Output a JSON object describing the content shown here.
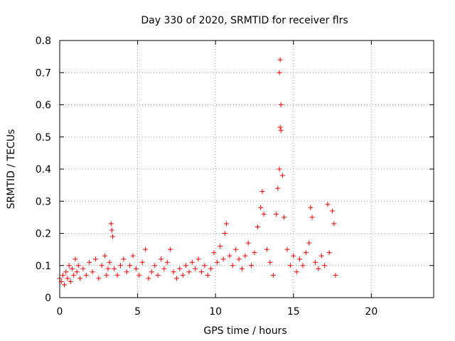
{
  "chart_data": {
    "type": "scatter",
    "title": "Day 330 of 2020, SRMTID for receiver flrs",
    "xlabel": "GPS time / hours",
    "ylabel": "SRMTID / TECUs",
    "xlim": [
      0,
      24
    ],
    "ylim": [
      0,
      0.8
    ],
    "xticks": [
      0,
      5,
      10,
      15,
      20
    ],
    "yticks": [
      0,
      0.1,
      0.2,
      0.3,
      0.4,
      0.5,
      0.6,
      0.7,
      0.8
    ],
    "xtick_labels": [
      "0",
      "5",
      "10",
      "15",
      "20"
    ],
    "ytick_labels": [
      "0",
      "0.1",
      "0.2",
      "0.3",
      "0.4",
      "0.5",
      "0.6",
      "0.7",
      "0.8"
    ],
    "grid": true,
    "marker": "+",
    "color": "#ff0000",
    "series": [
      {
        "name": "SRMTID",
        "points": [
          [
            0.0,
            0.06
          ],
          [
            0.1,
            0.05
          ],
          [
            0.2,
            0.07
          ],
          [
            0.3,
            0.04
          ],
          [
            0.4,
            0.08
          ],
          [
            0.5,
            0.06
          ],
          [
            0.6,
            0.1
          ],
          [
            0.7,
            0.05
          ],
          [
            0.8,
            0.09
          ],
          [
            0.9,
            0.07
          ],
          [
            1.0,
            0.12
          ],
          [
            1.1,
            0.08
          ],
          [
            1.2,
            0.1
          ],
          [
            1.3,
            0.06
          ],
          [
            1.5,
            0.09
          ],
          [
            1.7,
            0.07
          ],
          [
            1.9,
            0.11
          ],
          [
            2.1,
            0.08
          ],
          [
            2.3,
            0.12
          ],
          [
            2.5,
            0.06
          ],
          [
            2.7,
            0.1
          ],
          [
            2.9,
            0.13
          ],
          [
            3.0,
            0.07
          ],
          [
            3.1,
            0.09
          ],
          [
            3.2,
            0.11
          ],
          [
            3.3,
            0.23
          ],
          [
            3.35,
            0.21
          ],
          [
            3.4,
            0.19
          ],
          [
            3.5,
            0.09
          ],
          [
            3.7,
            0.07
          ],
          [
            3.9,
            0.1
          ],
          [
            4.1,
            0.12
          ],
          [
            4.3,
            0.08
          ],
          [
            4.5,
            0.1
          ],
          [
            4.7,
            0.13
          ],
          [
            4.9,
            0.09
          ],
          [
            5.1,
            0.07
          ],
          [
            5.3,
            0.11
          ],
          [
            5.5,
            0.15
          ],
          [
            5.7,
            0.06
          ],
          [
            5.9,
            0.08
          ],
          [
            6.1,
            0.1
          ],
          [
            6.3,
            0.07
          ],
          [
            6.5,
            0.12
          ],
          [
            6.7,
            0.09
          ],
          [
            6.9,
            0.11
          ],
          [
            7.1,
            0.15
          ],
          [
            7.3,
            0.08
          ],
          [
            7.5,
            0.06
          ],
          [
            7.7,
            0.09
          ],
          [
            7.9,
            0.07
          ],
          [
            8.1,
            0.1
          ],
          [
            8.3,
            0.08
          ],
          [
            8.5,
            0.11
          ],
          [
            8.7,
            0.09
          ],
          [
            8.9,
            0.12
          ],
          [
            9.1,
            0.08
          ],
          [
            9.3,
            0.1
          ],
          [
            9.5,
            0.07
          ],
          [
            9.7,
            0.09
          ],
          [
            9.9,
            0.14
          ],
          [
            10.1,
            0.11
          ],
          [
            10.3,
            0.16
          ],
          [
            10.5,
            0.12
          ],
          [
            10.6,
            0.2
          ],
          [
            10.7,
            0.23
          ],
          [
            10.9,
            0.13
          ],
          [
            11.1,
            0.1
          ],
          [
            11.3,
            0.15
          ],
          [
            11.5,
            0.12
          ],
          [
            11.7,
            0.09
          ],
          [
            11.9,
            0.13
          ],
          [
            12.1,
            0.17
          ],
          [
            12.3,
            0.1
          ],
          [
            12.5,
            0.14
          ],
          [
            12.7,
            0.22
          ],
          [
            12.9,
            0.28
          ],
          [
            13.0,
            0.33
          ],
          [
            13.1,
            0.26
          ],
          [
            13.3,
            0.15
          ],
          [
            13.5,
            0.11
          ],
          [
            13.7,
            0.07
          ],
          [
            13.9,
            0.26
          ],
          [
            14.0,
            0.34
          ],
          [
            14.1,
            0.4
          ],
          [
            14.15,
            0.53
          ],
          [
            14.2,
            0.6
          ],
          [
            14.1,
            0.7
          ],
          [
            14.15,
            0.74
          ],
          [
            14.2,
            0.52
          ],
          [
            14.3,
            0.38
          ],
          [
            14.4,
            0.25
          ],
          [
            14.6,
            0.15
          ],
          [
            14.8,
            0.1
          ],
          [
            15.0,
            0.13
          ],
          [
            15.2,
            0.08
          ],
          [
            15.4,
            0.12
          ],
          [
            15.6,
            0.1
          ],
          [
            15.8,
            0.14
          ],
          [
            16.0,
            0.17
          ],
          [
            16.1,
            0.28
          ],
          [
            16.2,
            0.25
          ],
          [
            16.4,
            0.11
          ],
          [
            16.6,
            0.09
          ],
          [
            16.8,
            0.13
          ],
          [
            17.0,
            0.1
          ],
          [
            17.2,
            0.29
          ],
          [
            17.3,
            0.14
          ],
          [
            17.5,
            0.27
          ],
          [
            17.6,
            0.23
          ],
          [
            17.7,
            0.07
          ]
        ]
      }
    ]
  }
}
